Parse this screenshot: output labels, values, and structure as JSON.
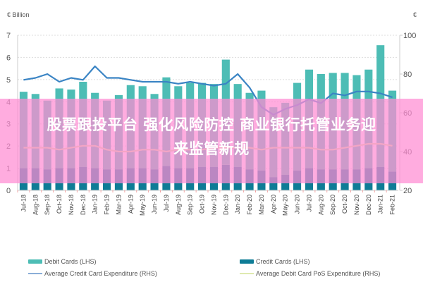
{
  "chart_data": {
    "type": "bar",
    "title": "",
    "left_unit_label": "€ Billion",
    "right_unit_label": "€",
    "xlabel": "",
    "ylabel_left": "€ Billion",
    "ylabel_right": "€",
    "ylim_left": [
      0,
      7
    ],
    "ylim_right": [
      20,
      100
    ],
    "yticks_left": [
      "0",
      "1",
      "2",
      "3",
      "4",
      "5",
      "6",
      "7"
    ],
    "yticks_right": [
      "20",
      "40",
      "60",
      "80",
      "100"
    ],
    "grid": true,
    "legend_position": "bottom",
    "categories": [
      "Jul-18",
      "Aug-18",
      "Sep-18",
      "Oct-18",
      "Nov-18",
      "Dec-18",
      "Jan-19",
      "Feb-19",
      "Mar-19",
      "Apr-19",
      "May-19",
      "Jun-19",
      "Jul-19",
      "Aug-19",
      "Sep-19",
      "Oct-19",
      "Nov-19",
      "Dec-19",
      "Jan-20",
      "Feb-20",
      "Mar-20",
      "Apr-20",
      "May-20",
      "Jun-20",
      "Jul-20",
      "Aug-20",
      "Sep-20",
      "Oct-20",
      "Nov-20",
      "Dec-20",
      "Jan-21",
      "Feb-21"
    ],
    "series": [
      {
        "name": "Debit Cards (LHS)",
        "type": "bar",
        "axis": "left",
        "stack": "cards",
        "color": "#4dbdb5",
        "values": [
          3.45,
          3.35,
          3.1,
          3.6,
          3.55,
          3.85,
          3.4,
          3.1,
          3.35,
          3.75,
          3.7,
          3.4,
          4.0,
          3.7,
          3.85,
          3.8,
          3.75,
          4.75,
          3.75,
          3.45,
          3.6,
          3.15,
          3.25,
          3.95,
          4.45,
          4.3,
          4.35,
          4.35,
          4.25,
          4.45,
          5.5,
          3.65
        ]
      },
      {
        "name": "Credit Cards (LHS)",
        "type": "bar",
        "axis": "left",
        "stack": "cards",
        "color": "#0e7c96",
        "values": [
          1.0,
          1.0,
          0.95,
          1.0,
          1.0,
          1.05,
          1.0,
          0.95,
          0.95,
          1.0,
          1.0,
          0.95,
          1.1,
          1.0,
          1.0,
          1.05,
          1.05,
          1.15,
          1.05,
          0.95,
          0.9,
          0.6,
          0.7,
          0.9,
          1.0,
          0.95,
          0.95,
          0.95,
          0.95,
          1.0,
          1.05,
          0.85
        ]
      },
      {
        "name": "Average Credit Card Expenditure (RHS)",
        "type": "line",
        "axis": "right",
        "color": "#3a84c4",
        "values": [
          77,
          78,
          80,
          76,
          78,
          77,
          84,
          78,
          78,
          77,
          76,
          76,
          76,
          75,
          76,
          75,
          74,
          75,
          80,
          73,
          63,
          59,
          62,
          64,
          67,
          65,
          70,
          69,
          71,
          71,
          70,
          68
        ]
      },
      {
        "name": "Average Debit Card PoS Expenditure (RHS)",
        "type": "line",
        "axis": "right",
        "color": "#d6e6a0",
        "values": [
          42,
          42,
          42,
          41,
          42,
          43,
          43,
          41,
          40,
          40,
          41,
          41,
          40,
          41,
          41,
          41,
          42,
          42,
          42,
          42,
          41,
          42,
          42,
          42,
          42,
          41,
          41,
          42,
          43,
          44,
          44,
          43
        ]
      }
    ]
  },
  "legend": {
    "items": [
      {
        "label": "Debit Cards (LHS)",
        "color": "#4dbdb5",
        "kind": "bar"
      },
      {
        "label": "Credit Cards (LHS)",
        "color": "#0e7c96",
        "kind": "bar"
      },
      {
        "label": "Average Credit Card Expenditure (RHS)",
        "color": "#8aaed8",
        "kind": "line"
      },
      {
        "label": "Average Debit Card PoS Expenditure (RHS)",
        "color": "#dfeab0",
        "kind": "line"
      }
    ]
  },
  "overlay": {
    "headline_line1": "股票跟投平台 强化风险防控 商业银行托管业务迎",
    "headline_line2": "来监管新规"
  }
}
